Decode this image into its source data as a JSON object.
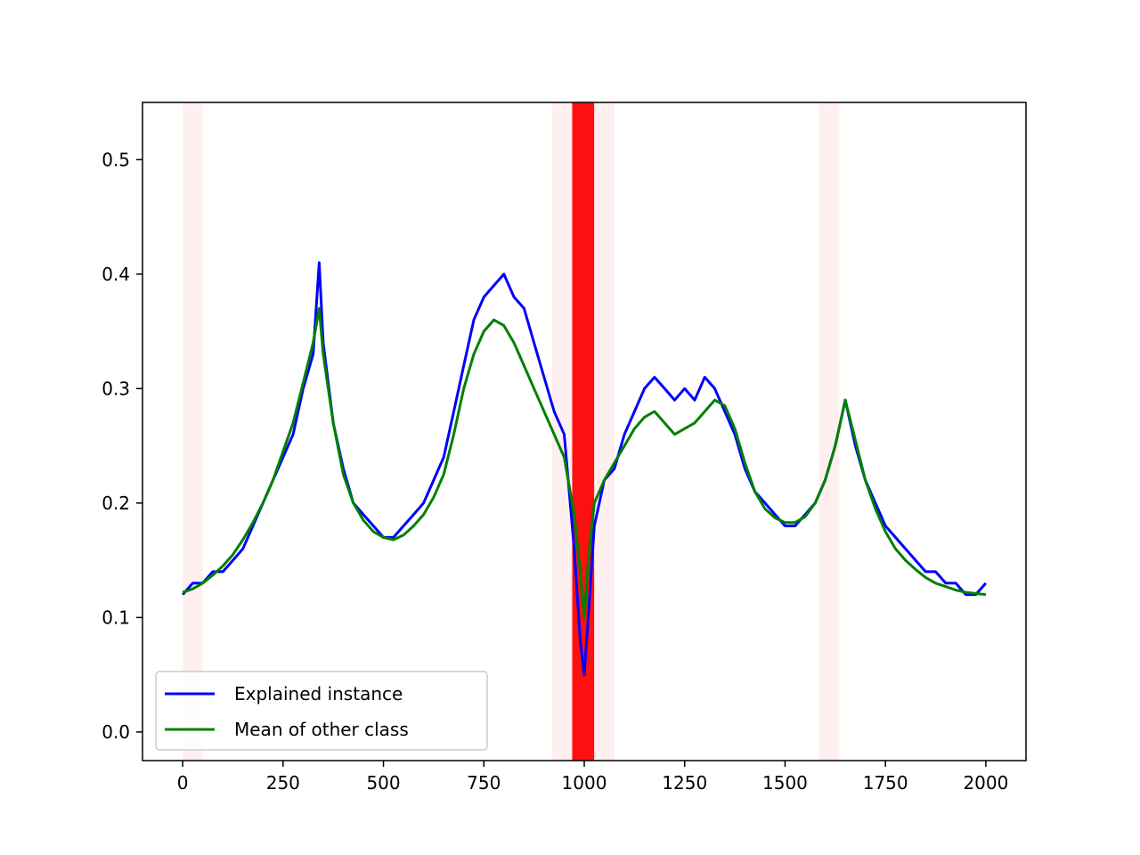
{
  "chart_data": {
    "type": "line",
    "title": "",
    "xlabel": "",
    "ylabel": "",
    "xlim": [
      -100,
      2100
    ],
    "ylim": [
      -0.025,
      0.55
    ],
    "xticks": [
      0,
      250,
      500,
      750,
      1000,
      1250,
      1500,
      1750,
      2000
    ],
    "xtick_labels": [
      "0",
      "250",
      "500",
      "750",
      "1000",
      "1250",
      "1500",
      "1750",
      "2000"
    ],
    "yticks": [
      0.0,
      0.1,
      0.2,
      0.3,
      0.4,
      0.5
    ],
    "ytick_labels": [
      "0.0",
      "0.1",
      "0.2",
      "0.3",
      "0.4",
      "0.5"
    ],
    "grid": false,
    "legend_position": "lower-left",
    "highlight_regions": [
      {
        "x_start": 0,
        "x_end": 50,
        "color": "#fff0f0"
      },
      {
        "x_start": 920,
        "x_end": 970,
        "color": "#fff0f0"
      },
      {
        "x_start": 970,
        "x_end": 1025,
        "color": "#ff1010"
      },
      {
        "x_start": 1025,
        "x_end": 1075,
        "color": "#fff0f0"
      },
      {
        "x_start": 1585,
        "x_end": 1635,
        "color": "#fff0f0"
      }
    ],
    "series": [
      {
        "name": "Explained instance",
        "color": "#0000ff",
        "x": [
          0,
          25,
          50,
          75,
          100,
          125,
          150,
          175,
          200,
          225,
          250,
          275,
          300,
          325,
          340,
          350,
          375,
          400,
          425,
          450,
          475,
          500,
          525,
          550,
          575,
          600,
          625,
          650,
          675,
          700,
          725,
          750,
          775,
          800,
          825,
          850,
          875,
          900,
          925,
          950,
          975,
          990,
          1000,
          1010,
          1025,
          1050,
          1075,
          1100,
          1125,
          1150,
          1175,
          1200,
          1225,
          1250,
          1275,
          1300,
          1325,
          1350,
          1375,
          1400,
          1425,
          1450,
          1475,
          1500,
          1525,
          1550,
          1575,
          1600,
          1625,
          1650,
          1675,
          1700,
          1725,
          1750,
          1775,
          1800,
          1825,
          1850,
          1875,
          1900,
          1925,
          1950,
          1975,
          2000
        ],
        "values": [
          0.12,
          0.13,
          0.13,
          0.14,
          0.14,
          0.15,
          0.16,
          0.18,
          0.2,
          0.22,
          0.24,
          0.26,
          0.3,
          0.33,
          0.41,
          0.34,
          0.27,
          0.23,
          0.2,
          0.19,
          0.18,
          0.17,
          0.17,
          0.18,
          0.19,
          0.2,
          0.22,
          0.24,
          0.28,
          0.32,
          0.36,
          0.38,
          0.39,
          0.4,
          0.38,
          0.37,
          0.34,
          0.31,
          0.28,
          0.26,
          0.16,
          0.08,
          0.05,
          0.1,
          0.18,
          0.22,
          0.23,
          0.26,
          0.28,
          0.3,
          0.31,
          0.3,
          0.29,
          0.3,
          0.29,
          0.31,
          0.3,
          0.28,
          0.26,
          0.23,
          0.21,
          0.2,
          0.19,
          0.18,
          0.18,
          0.19,
          0.2,
          0.22,
          0.25,
          0.29,
          0.25,
          0.22,
          0.2,
          0.18,
          0.17,
          0.16,
          0.15,
          0.14,
          0.14,
          0.13,
          0.13,
          0.12,
          0.12,
          0.13
        ]
      },
      {
        "name": "Mean of other class",
        "color": "#008000",
        "x": [
          0,
          25,
          50,
          75,
          100,
          125,
          150,
          175,
          200,
          225,
          250,
          275,
          300,
          325,
          340,
          350,
          375,
          400,
          425,
          450,
          475,
          500,
          525,
          550,
          575,
          600,
          625,
          650,
          675,
          700,
          725,
          750,
          775,
          800,
          825,
          850,
          875,
          900,
          925,
          950,
          975,
          990,
          1000,
          1010,
          1025,
          1050,
          1075,
          1100,
          1125,
          1150,
          1175,
          1200,
          1225,
          1250,
          1275,
          1300,
          1325,
          1350,
          1375,
          1400,
          1425,
          1450,
          1475,
          1500,
          1525,
          1550,
          1575,
          1600,
          1625,
          1650,
          1675,
          1700,
          1725,
          1750,
          1775,
          1800,
          1825,
          1850,
          1875,
          1900,
          1925,
          1950,
          1975,
          2000
        ],
        "values": [
          0.122,
          0.125,
          0.13,
          0.137,
          0.145,
          0.155,
          0.168,
          0.183,
          0.2,
          0.22,
          0.245,
          0.27,
          0.305,
          0.34,
          0.37,
          0.33,
          0.27,
          0.225,
          0.2,
          0.185,
          0.175,
          0.17,
          0.168,
          0.172,
          0.18,
          0.19,
          0.205,
          0.225,
          0.26,
          0.3,
          0.33,
          0.35,
          0.36,
          0.355,
          0.34,
          0.32,
          0.3,
          0.28,
          0.26,
          0.24,
          0.19,
          0.14,
          0.1,
          0.15,
          0.2,
          0.22,
          0.235,
          0.25,
          0.265,
          0.275,
          0.28,
          0.27,
          0.26,
          0.265,
          0.27,
          0.28,
          0.29,
          0.285,
          0.265,
          0.235,
          0.21,
          0.195,
          0.187,
          0.183,
          0.183,
          0.188,
          0.2,
          0.22,
          0.25,
          0.29,
          0.255,
          0.22,
          0.195,
          0.175,
          0.16,
          0.15,
          0.142,
          0.135,
          0.13,
          0.127,
          0.124,
          0.122,
          0.121,
          0.12
        ]
      }
    ]
  }
}
